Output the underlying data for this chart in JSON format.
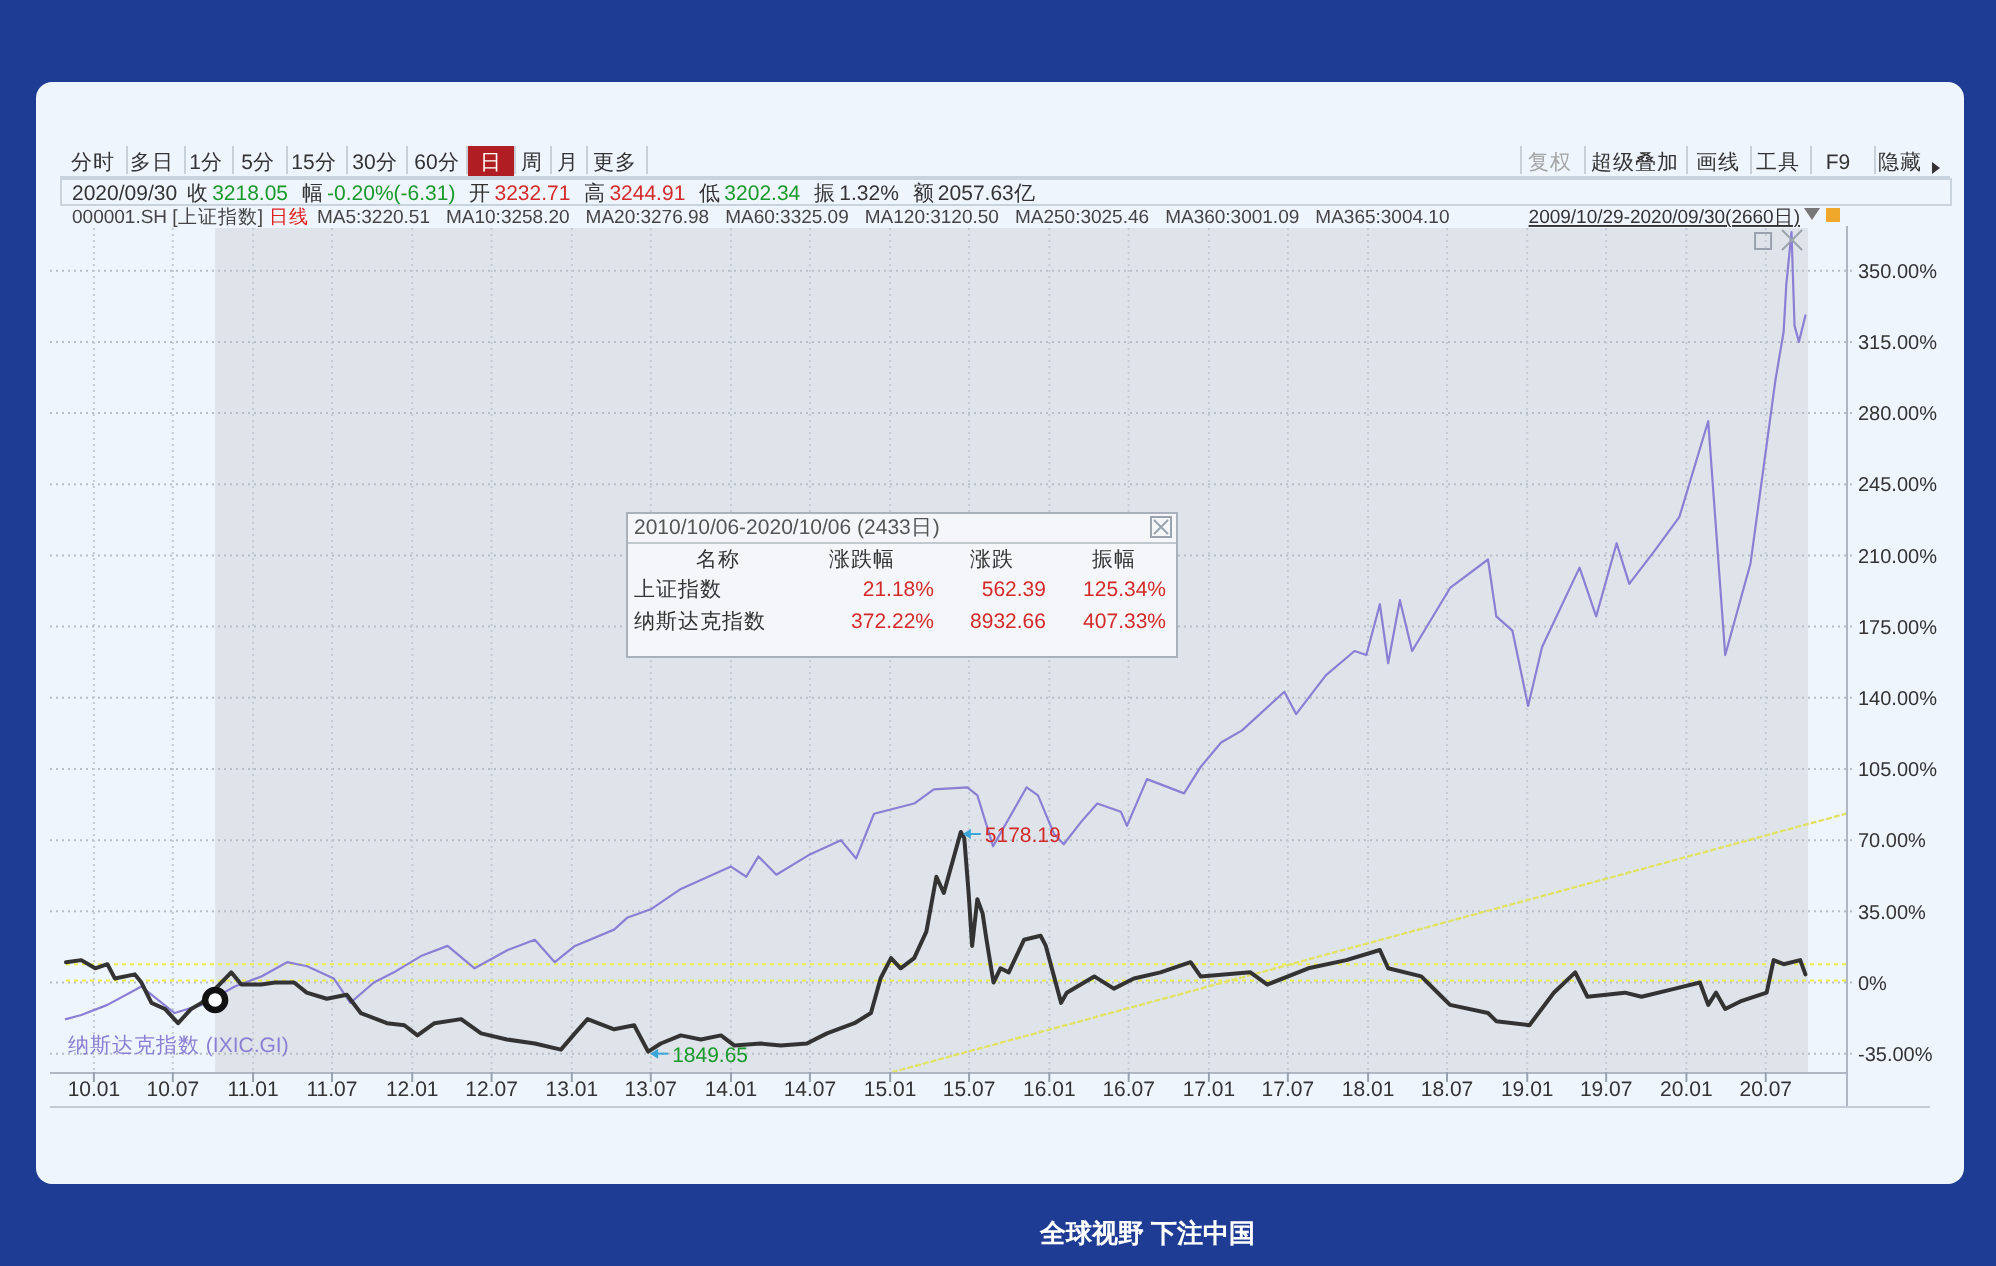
{
  "chart_data": {
    "type": "line",
    "xlim": [
      "2009-10-29",
      "2021-01-01"
    ],
    "ylim": [
      -44,
      371
    ],
    "xticks": [
      {
        "value": "2010-01-01",
        "label": "10.01"
      },
      {
        "value": "2010-07-01",
        "label": "10.07"
      },
      {
        "value": "2011-01-01",
        "label": "11.01"
      },
      {
        "value": "2011-07-01",
        "label": "11.07"
      },
      {
        "value": "2012-01-01",
        "label": "12.01"
      },
      {
        "value": "2012-07-01",
        "label": "12.07"
      },
      {
        "value": "2013-01-01",
        "label": "13.01"
      },
      {
        "value": "2013-07-01",
        "label": "13.07"
      },
      {
        "value": "2014-01-01",
        "label": "14.01"
      },
      {
        "value": "2014-07-01",
        "label": "14.07"
      },
      {
        "value": "2015-01-01",
        "label": "15.01"
      },
      {
        "value": "2015-07-01",
        "label": "15.07"
      },
      {
        "value": "2016-01-01",
        "label": "16.01"
      },
      {
        "value": "2016-07-01",
        "label": "16.07"
      },
      {
        "value": "2017-01-01",
        "label": "17.01"
      },
      {
        "value": "2017-07-01",
        "label": "17.07"
      },
      {
        "value": "2018-01-01",
        "label": "18.01"
      },
      {
        "value": "2018-07-01",
        "label": "18.07"
      },
      {
        "value": "2019-01-01",
        "label": "19.01"
      },
      {
        "value": "2019-07-01",
        "label": "19.07"
      },
      {
        "value": "2020-01-01",
        "label": "20.01"
      },
      {
        "value": "2020-07-01",
        "label": "20.07"
      }
    ],
    "yticks": [
      {
        "value": -35,
        "label": "-35.00%"
      },
      {
        "value": 0,
        "label": "0%"
      },
      {
        "value": 35,
        "label": "35.00%"
      },
      {
        "value": 70,
        "label": "70.00%"
      },
      {
        "value": 105,
        "label": "105.00%"
      },
      {
        "value": 140,
        "label": "140.00%"
      },
      {
        "value": 175,
        "label": "175.00%"
      },
      {
        "value": 210,
        "label": "210.00%"
      },
      {
        "value": 245,
        "label": "245.00%"
      },
      {
        "value": 280,
        "label": "280.00%"
      },
      {
        "value": 315,
        "label": "315.00%"
      },
      {
        "value": 350,
        "label": "350.00%"
      }
    ],
    "grid": true,
    "bands": [
      {
        "axis": "x",
        "from": "2010-10-06",
        "to": "2020-10-06",
        "color": "#dfe4ea"
      }
    ],
    "ref_lines": [
      {
        "axis": "y",
        "value": 9,
        "color": "#eeee44",
        "line_style": "dotted"
      },
      {
        "axis": "y",
        "value": 1,
        "color": "#eeee44",
        "line_style": "dotted"
      }
    ],
    "series": [
      {
        "type": "line",
        "color": "#e2e266",
        "line_style": "dotted",
        "x": [
          "2015-01-07",
          "2021-01-01"
        ],
        "values": [
          -44,
          83
        ]
      },
      {
        "name": "纳斯达克指数 (IXIC.GI)",
        "color": "#8a7fd4",
        "x": [
          "2009-10-29",
          "2009-12-03",
          "2010-02-01",
          "2010-04-20",
          "2010-07-05",
          "2010-09-05",
          "2010-11-20",
          "2011-01-20",
          "2011-03-20",
          "2011-05-05",
          "2011-07-05",
          "2011-08-12",
          "2011-10-05",
          "2011-11-20",
          "2012-01-21",
          "2012-03-22",
          "2012-05-23",
          "2012-08-07",
          "2012-10-08",
          "2012-11-23",
          "2013-01-08",
          "2013-04-08",
          "2013-05-09",
          "2013-07-01",
          "2013-09-08",
          "2014-01-01",
          "2014-02-05",
          "2014-03-05",
          "2014-04-15",
          "2014-07-01",
          "2014-09-10",
          "2014-10-15",
          "2014-11-25",
          "2015-02-25",
          "2015-04-11",
          "2015-06-27",
          "2015-07-20",
          "2015-08-25",
          "2015-11-10",
          "2015-12-06",
          "2016-01-12",
          "2016-02-03",
          "2016-03-14",
          "2016-04-20",
          "2016-06-13",
          "2016-06-27",
          "2016-08-12",
          "2016-11-05",
          "2016-12-13",
          "2017-01-29",
          "2017-03-18",
          "2017-06-23",
          "2017-07-20",
          "2017-09-26",
          "2017-12-01",
          "2017-12-28",
          "2018-01-28",
          "2018-02-16",
          "2018-03-15",
          "2018-04-12",
          "2018-07-08",
          "2018-10-03",
          "2018-10-22",
          "2018-11-28",
          "2019-01-03",
          "2019-02-04",
          "2019-05-01",
          "2019-06-08",
          "2019-07-25",
          "2019-08-23",
          "2019-10-19",
          "2019-12-16",
          "2020-02-20",
          "2020-03-30",
          "2020-05-27",
          "2020-07-23",
          "2020-08-11",
          "2020-08-17",
          "2020-08-29",
          "2020-09-05",
          "2020-09-15",
          "2020-09-30"
        ],
        "values": [
          -18,
          -16,
          -11,
          -2,
          -15,
          -11,
          -2,
          3,
          10,
          8,
          2,
          -10,
          0,
          5,
          13,
          18,
          7,
          16,
          21,
          10,
          18,
          26,
          32,
          36,
          46,
          57,
          52,
          62,
          53,
          63,
          70,
          61,
          83,
          88,
          95,
          96,
          92,
          67,
          96,
          92,
          73,
          68,
          79,
          88,
          84,
          77,
          100,
          93,
          106,
          118,
          124,
          143,
          132,
          151,
          163,
          161,
          186,
          157,
          188,
          163,
          194,
          208,
          180,
          173,
          136,
          165,
          204,
          180,
          216,
          196,
          212,
          229,
          276,
          161,
          206,
          296,
          320,
          343,
          369,
          323,
          315,
          328
        ]
      },
      {
        "color": "#333333",
        "x": [
          "2009-10-29",
          "2009-12-03",
          "2010-01-04",
          "2010-02-01",
          "2010-02-18",
          "2010-04-05",
          "2010-04-20",
          "2010-05-13",
          "2010-06-13",
          "2010-07-13",
          "2010-08-12",
          "2010-09-05",
          "2010-11-12",
          "2010-12-05",
          "2011-01-20",
          "2011-02-20",
          "2011-04-05",
          "2011-05-04",
          "2011-06-19",
          "2011-08-04",
          "2011-09-05",
          "2011-11-04",
          "2011-12-14",
          "2012-01-13",
          "2012-02-21",
          "2012-04-22",
          "2012-06-07",
          "2012-08-05",
          "2012-10-08",
          "2012-12-07",
          "2013-01-08",
          "2013-02-06",
          "2013-04-08",
          "2013-05-24",
          "2013-06-25",
          "2013-07-24",
          "2013-09-08",
          "2013-10-24",
          "2013-12-09",
          "2014-01-09",
          "2014-03-10",
          "2014-04-25",
          "2014-06-24",
          "2014-08-09",
          "2014-10-11",
          "2014-11-18",
          "2014-12-10",
          "2015-01-03",
          "2015-01-25",
          "2015-02-25",
          "2015-03-25",
          "2015-04-17",
          "2015-05-04",
          "2015-06-12",
          "2015-06-20",
          "2015-06-30",
          "2015-07-08",
          "2015-07-20",
          "2015-08-01",
          "2015-08-10",
          "2015-08-26",
          "2015-09-11",
          "2015-09-30",
          "2015-11-04",
          "2015-12-12",
          "2015-12-24",
          "2016-01-28",
          "2016-02-10",
          "2016-04-13",
          "2016-05-28",
          "2016-07-13",
          "2016-09-12",
          "2016-11-20",
          "2016-12-13",
          "2017-04-06",
          "2017-05-15",
          "2017-08-17",
          "2017-11-12",
          "2018-01-28",
          "2018-02-16",
          "2018-05-03",
          "2018-06-19",
          "2018-07-08",
          "2018-10-03",
          "2018-10-22",
          "2019-01-06",
          "2019-03-03",
          "2019-04-21",
          "2019-05-19",
          "2019-08-13",
          "2019-09-20",
          "2019-12-06",
          "2020-02-01",
          "2020-02-20",
          "2020-03-09",
          "2020-03-30",
          "2020-05-07",
          "2020-07-03",
          "2020-07-19",
          "2020-08-11",
          "2020-09-18",
          "2020-09-30"
        ],
        "values": [
          10,
          11,
          7,
          9,
          2,
          4,
          0,
          -10,
          -13,
          -20,
          -13,
          -10,
          5,
          -1,
          -1,
          0,
          0,
          -5,
          -8,
          -6,
          -15,
          -20,
          -21,
          -26,
          -20,
          -18,
          -25,
          -28,
          -30,
          -33,
          -25,
          -18,
          -23,
          -21,
          -34,
          -30,
          -26,
          -28,
          -26,
          -31,
          -30,
          -31,
          -30,
          -25,
          -20,
          -15,
          2,
          12,
          7,
          12,
          25,
          52,
          44,
          74,
          71,
          44,
          18,
          41,
          34,
          21,
          0,
          7,
          5,
          21,
          23,
          18,
          -10,
          -5,
          3,
          -3,
          2,
          5,
          10,
          3,
          5,
          -1,
          7,
          11,
          16,
          7,
          3,
          -7,
          -11,
          -15,
          -19,
          -21,
          -5,
          5,
          -7,
          -5,
          -7,
          -3,
          0,
          -11,
          -5,
          -13,
          -9,
          -5,
          11,
          9,
          11,
          4
        ]
      }
    ],
    "annotations": [
      "分时",
      "多日",
      "1分",
      "5分",
      "15分",
      "30分",
      "60分",
      "日",
      "周",
      "月",
      "更多",
      "复权",
      "超级叠加",
      "画线",
      "工具",
      "F9",
      "隐藏",
      "2020/09/30",
      "收",
      "3218.05",
      "幅",
      "-0.20%(-6.31)",
      "开",
      "3232.71",
      "高",
      "3244.91",
      "低",
      "3202.34",
      "振",
      "1.32%",
      "额",
      "2057.63亿",
      "000001.SH [上证指数]",
      "日线",
      "MA5:3220.51",
      "MA10:3258.20",
      "MA20:3276.98",
      "MA60:3325.09",
      "MA120:3120.50",
      "MA250:3025.46",
      "MA360:3001.09",
      "MA365:3004.10",
      "2009/10/29-2020/09/30(2660日)",
      "2010/10/06-2020/10/06 (2433日)",
      "名称",
      "涨跌幅",
      "涨跌",
      "振幅",
      "上证指数",
      "21.18%",
      "562.39",
      "125.34%",
      "纳斯达克指数",
      "372.22%",
      "8932.66",
      "407.33%",
      "全球视野 下注中国",
      {
        "text": "5178.19",
        "x": "2015-06-12",
        "y": 74
      },
      {
        "text": "1849.65",
        "x": "2013-06-25",
        "y": -34
      }
    ]
  }
}
